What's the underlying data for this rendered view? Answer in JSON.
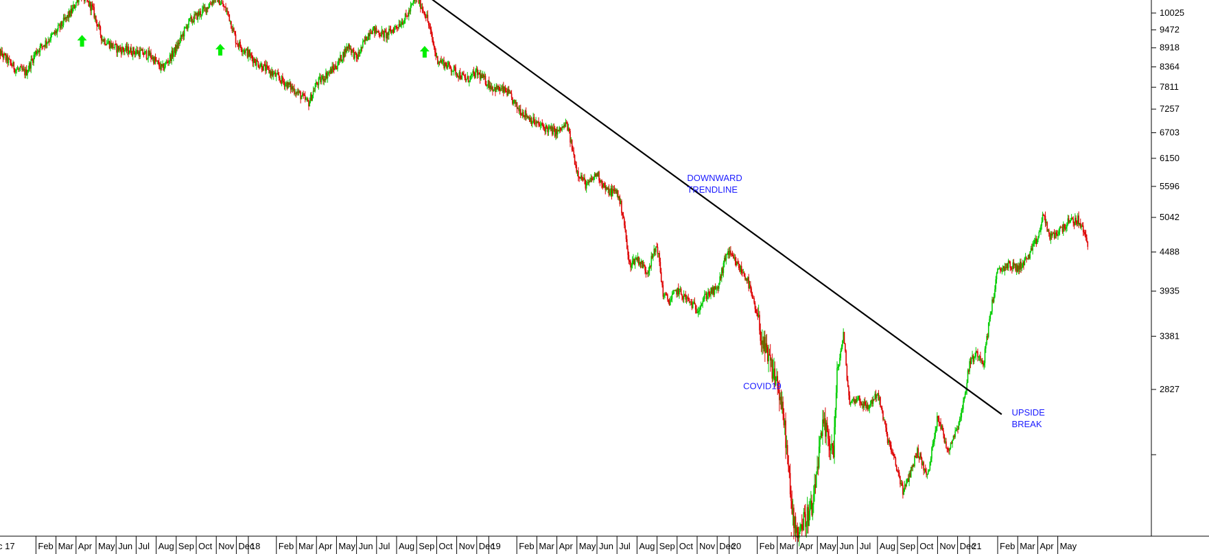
{
  "chart_data": {
    "type": "candlestick",
    "colors": {
      "up": "#00cc00",
      "down": "#dd0000",
      "trendline": "#000000",
      "annotation": "#1a1aff",
      "arrow": "#00ee00"
    },
    "y_axis": {
      "scale": "log",
      "ylim": [
        1500,
        11000
      ],
      "ticks": [
        "10025",
        "9472",
        "8918",
        "8364",
        "7811",
        "7257",
        "6703",
        "6150",
        "5596",
        "5042",
        "4488",
        "3935",
        "3381",
        "2827"
      ],
      "tick_values": [
        10025,
        9472,
        8918,
        8364,
        7811,
        7257,
        6703,
        6150,
        5596,
        5042,
        4488,
        3935,
        3381,
        2827
      ],
      "extra_tick_value": 2270
    },
    "x_axis": {
      "labels": [
        "c 17",
        "Feb",
        "Mar",
        "Apr",
        "May",
        "Jun",
        "Jul",
        "Aug",
        "Sep",
        "Oct",
        "Nov",
        "Dec",
        "18",
        "Feb",
        "Mar",
        "Apr",
        "May",
        "Jun",
        "Jul",
        "Aug",
        "Sep",
        "Oct",
        "Nov",
        "Dec",
        "19",
        "Feb",
        "Mar",
        "Apr",
        "May",
        "Jun",
        "Jul",
        "Aug",
        "Sep",
        "Oct",
        "Nov",
        "Dec",
        "20",
        "Feb",
        "Mar",
        "Apr",
        "May",
        "Jun",
        "Jul",
        "Aug",
        "Sep",
        "Oct",
        "Nov",
        "Dec",
        "21",
        "Feb",
        "Mar",
        "Apr",
        "May"
      ],
      "label_index": [
        0,
        2,
        3,
        4,
        5,
        6,
        7,
        8,
        9,
        10,
        11,
        12,
        12.6,
        14,
        15,
        16,
        17,
        18,
        19,
        20,
        21,
        22,
        23,
        24,
        24.6,
        26,
        27,
        28,
        29,
        30,
        31,
        32,
        33,
        34,
        35,
        36,
        36.6,
        38,
        39,
        40,
        41,
        42,
        43,
        44,
        45,
        46,
        47,
        48,
        48.6,
        50,
        51,
        52,
        53
      ]
    },
    "price_path": [
      [
        0,
        8900
      ],
      [
        1,
        8300
      ],
      [
        1.5,
        8200
      ],
      [
        2,
        8800
      ],
      [
        3,
        9400
      ],
      [
        3.8,
        10100
      ],
      [
        4.2,
        10700
      ],
      [
        4.8,
        10200
      ],
      [
        5.3,
        9200
      ],
      [
        6,
        8900
      ],
      [
        7,
        8800
      ],
      [
        7.7,
        8700
      ],
      [
        8.3,
        8300
      ],
      [
        9,
        8900
      ],
      [
        9.6,
        9700
      ],
      [
        10.5,
        10200
      ],
      [
        11,
        10600
      ],
      [
        11.6,
        10000
      ],
      [
        12,
        9100
      ],
      [
        13,
        8500
      ],
      [
        14,
        8100
      ],
      [
        15,
        7700
      ],
      [
        15.6,
        7400
      ],
      [
        16,
        7900
      ],
      [
        17,
        8400
      ],
      [
        17.6,
        9000
      ],
      [
        18,
        8600
      ],
      [
        18.7,
        9500
      ],
      [
        19.5,
        9300
      ],
      [
        20.5,
        9900
      ],
      [
        21,
        10600
      ],
      [
        21.5,
        9900
      ],
      [
        22,
        8600
      ],
      [
        22.8,
        8300
      ],
      [
        23.5,
        8000
      ],
      [
        24,
        8200
      ],
      [
        24.8,
        7800
      ],
      [
        25.5,
        7700
      ],
      [
        26,
        7300
      ],
      [
        26.5,
        7100
      ],
      [
        27,
        6900
      ],
      [
        27.5,
        6800
      ],
      [
        28,
        6700
      ],
      [
        28.5,
        6900
      ],
      [
        29,
        5900
      ],
      [
        29.5,
        5600
      ],
      [
        30,
        5850
      ],
      [
        30.5,
        5500
      ],
      [
        31,
        5500
      ],
      [
        31.3,
        5100
      ],
      [
        31.6,
        4300
      ],
      [
        32,
        4400
      ],
      [
        32.5,
        4200
      ],
      [
        33,
        4600
      ],
      [
        33.3,
        3900
      ],
      [
        33.6,
        3800
      ],
      [
        34,
        3950
      ],
      [
        34.6,
        3800
      ],
      [
        35,
        3700
      ],
      [
        35.5,
        3900
      ],
      [
        36,
        3950
      ],
      [
        36.5,
        4500
      ],
      [
        37,
        4300
      ],
      [
        37.5,
        4100
      ],
      [
        38,
        3600
      ],
      [
        38.4,
        3200
      ],
      [
        39,
        2900
      ],
      [
        39.4,
        2450
      ],
      [
        39.7,
        1900
      ],
      [
        40,
        1750
      ],
      [
        40.5,
        1850
      ],
      [
        40.8,
        1900
      ],
      [
        41,
        2200
      ],
      [
        41.3,
        2500
      ],
      [
        41.8,
        2300
      ],
      [
        42,
        3000
      ],
      [
        42.3,
        3400
      ],
      [
        42.6,
        2700
      ],
      [
        43,
        2750
      ],
      [
        43.5,
        2650
      ],
      [
        44,
        2800
      ],
      [
        44.5,
        2400
      ],
      [
        45,
        2150
      ],
      [
        45.3,
        2000
      ],
      [
        46,
        2300
      ],
      [
        46.5,
        2100
      ],
      [
        47,
        2600
      ],
      [
        47.5,
        2300
      ],
      [
        48,
        2500
      ],
      [
        48.3,
        2700
      ],
      [
        48.6,
        3100
      ],
      [
        49,
        3200
      ],
      [
        49.3,
        3100
      ],
      [
        49.6,
        3600
      ],
      [
        50,
        4200
      ],
      [
        50.5,
        4300
      ],
      [
        51,
        4250
      ],
      [
        51.5,
        4400
      ],
      [
        52,
        4700
      ],
      [
        52.3,
        5100
      ],
      [
        52.6,
        4700
      ],
      [
        53,
        4800
      ],
      [
        53.5,
        4950
      ],
      [
        54,
        5000
      ],
      [
        54.3,
        4800
      ],
      [
        54.5,
        4600
      ]
    ],
    "trendline": [
      [
        21,
        10900
      ],
      [
        50.2,
        2600
      ]
    ],
    "arrows": [
      4.3,
      11.2,
      21.4
    ],
    "annotations": [
      {
        "lines": [
          "DOWNWARD",
          "TRENDLINE"
        ],
        "at": [
          34.5,
          5700
        ]
      },
      {
        "lines": [
          "COVID19"
        ],
        "at": [
          37.3,
          2830
        ]
      },
      {
        "lines": [
          "UPSIDE",
          "BREAK"
        ],
        "at": [
          50.7,
          2590
        ]
      }
    ]
  }
}
